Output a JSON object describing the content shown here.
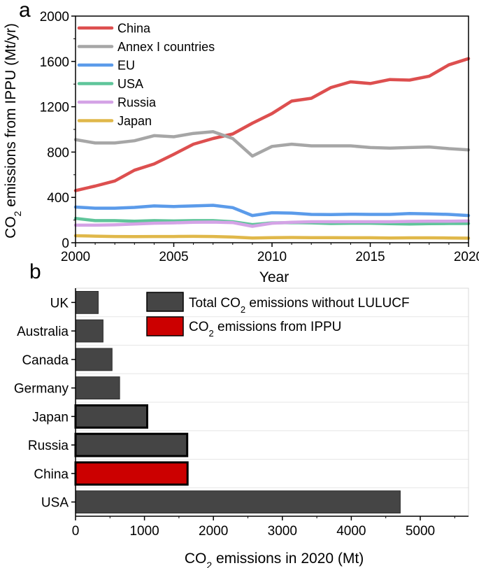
{
  "chart_data": [
    {
      "panel_label": "a",
      "type": "line",
      "title": "",
      "xlabel": "Year",
      "ylabel_parts": [
        "CO",
        "2",
        " emissions from IPPU (Mt/yr)"
      ],
      "xlim": [
        2000,
        2020
      ],
      "ylim": [
        0,
        2000
      ],
      "xticks": [
        "2000",
        "2005",
        "2010",
        "2015",
        "2020"
      ],
      "yticks": [
        "0",
        "400",
        "800",
        "1200",
        "1600",
        "2000"
      ],
      "legend_position": "top-left",
      "x": [
        2000,
        2001,
        2002,
        2003,
        2004,
        2005,
        2006,
        2007,
        2008,
        2009,
        2010,
        2011,
        2012,
        2013,
        2014,
        2015,
        2016,
        2017,
        2018,
        2019,
        2020
      ],
      "series": [
        {
          "name": "China",
          "color": "#dd4f4f",
          "values": [
            460,
            500,
            545,
            640,
            695,
            780,
            870,
            920,
            960,
            1055,
            1140,
            1250,
            1275,
            1370,
            1420,
            1405,
            1440,
            1435,
            1470,
            1570,
            1625
          ]
        },
        {
          "name": "Annex I countries",
          "color": "#a6a6a6",
          "values": [
            910,
            880,
            880,
            900,
            945,
            935,
            965,
            980,
            920,
            765,
            850,
            870,
            855,
            855,
            855,
            840,
            835,
            840,
            845,
            830,
            820
          ]
        },
        {
          "name": "EU",
          "color": "#5b9bea",
          "values": [
            315,
            305,
            305,
            312,
            325,
            320,
            325,
            330,
            310,
            240,
            265,
            262,
            250,
            248,
            252,
            250,
            250,
            258,
            255,
            250,
            240
          ]
        },
        {
          "name": "USA",
          "color": "#5fc59a",
          "values": [
            215,
            195,
            195,
            190,
            195,
            192,
            195,
            195,
            185,
            160,
            175,
            178,
            175,
            170,
            172,
            172,
            168,
            165,
            168,
            170,
            170
          ]
        },
        {
          "name": "Russia",
          "color": "#d4a3e6",
          "values": [
            155,
            155,
            158,
            165,
            172,
            175,
            180,
            182,
            178,
            145,
            172,
            180,
            185,
            185,
            185,
            185,
            185,
            188,
            190,
            190,
            192
          ]
        },
        {
          "name": "Japan",
          "color": "#e0b84a",
          "values": [
            62,
            58,
            55,
            54,
            55,
            55,
            56,
            55,
            50,
            42,
            45,
            46,
            45,
            45,
            44,
            44,
            42,
            43,
            43,
            42,
            40
          ]
        }
      ]
    },
    {
      "panel_label": "b",
      "type": "bar",
      "orientation": "horizontal",
      "title": "",
      "xlabel_parts": [
        "CO",
        "2",
        " emissions in 2020 (Mt)"
      ],
      "ylabel": "",
      "xlim": [
        0,
        5700
      ],
      "xticks": [
        "0",
        "1000",
        "2000",
        "3000",
        "4000",
        "5000"
      ],
      "legend_position": "top-right",
      "categories": [
        "UK",
        "Australia",
        "Canada",
        "Germany",
        "Japan",
        "Russia",
        "China",
        "USA"
      ],
      "series": [
        {
          "name_parts": [
            "Total CO",
            "2",
            " emissions without LULUCF"
          ],
          "color": "#454545",
          "values": [
            330,
            400,
            530,
            640,
            1040,
            1620,
            null,
            4710
          ]
        },
        {
          "name_parts": [
            "CO",
            "2",
            " emissions from IPPU"
          ],
          "color": "#cc0000",
          "values": [
            null,
            null,
            null,
            null,
            null,
            null,
            1625,
            null
          ]
        }
      ],
      "outlined_categories": [
        "Japan",
        "Russia",
        "China"
      ]
    }
  ]
}
